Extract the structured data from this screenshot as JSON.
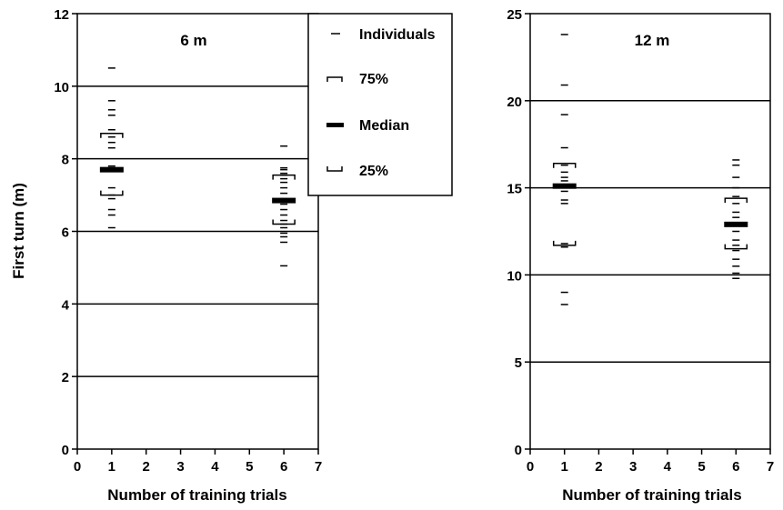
{
  "figure": {
    "ylabel": "First turn (m)",
    "legend": {
      "individuals": "Individuals",
      "q75": "75%",
      "median": "Median",
      "q25": "25%"
    }
  },
  "chart_data": [
    {
      "type": "scatter",
      "title": "6 m",
      "xlabel": "Number of training trials",
      "ylabel": "First turn (m)",
      "xlim": [
        0,
        7
      ],
      "ylim": [
        0,
        12
      ],
      "xticks": [
        "0",
        "1",
        "2",
        "3",
        "4",
        "5",
        "6",
        "7"
      ],
      "yticks": [
        "0",
        "2",
        "4",
        "6",
        "8",
        "10",
        "12"
      ],
      "gridlines_y": [
        2,
        4,
        6,
        8,
        10
      ],
      "groups": [
        {
          "x": 1,
          "individuals": [
            10.5,
            9.6,
            9.35,
            9.2,
            8.8,
            8.6,
            8.45,
            8.3,
            7.8,
            7.75,
            7.7,
            7.2,
            7.0,
            6.9,
            6.6,
            6.45,
            6.1
          ],
          "q75": 8.7,
          "median": 7.7,
          "q25": 7.0
        },
        {
          "x": 6,
          "individuals": [
            8.35,
            7.75,
            7.7,
            7.6,
            7.55,
            7.45,
            7.35,
            7.2,
            7.05,
            6.9,
            6.85,
            6.75,
            6.6,
            6.45,
            6.3,
            6.2,
            6.1,
            5.95,
            5.85,
            5.7,
            5.05
          ],
          "q75": 7.55,
          "median": 6.85,
          "q25": 6.2
        }
      ]
    },
    {
      "type": "scatter",
      "title": "12 m",
      "xlabel": "Number of training trials",
      "ylabel": "",
      "xlim": [
        0,
        7
      ],
      "ylim": [
        0,
        25
      ],
      "xticks": [
        "0",
        "1",
        "2",
        "3",
        "4",
        "5",
        "6",
        "7"
      ],
      "yticks": [
        "0",
        "5",
        "10",
        "15",
        "20",
        "25"
      ],
      "gridlines_y": [
        5,
        10,
        15,
        20
      ],
      "groups": [
        {
          "x": 1,
          "individuals": [
            23.8,
            20.9,
            19.2,
            17.3,
            16.3,
            15.9,
            15.6,
            15.4,
            15.2,
            15.0,
            14.8,
            14.3,
            14.1,
            11.8,
            11.6,
            9.0,
            8.3
          ],
          "q75": 16.4,
          "median": 15.1,
          "q25": 11.7
        },
        {
          "x": 6,
          "individuals": [
            16.6,
            16.3,
            15.6,
            15.0,
            14.5,
            14.1,
            13.6,
            13.3,
            12.9,
            12.5,
            12.0,
            11.7,
            11.4,
            10.9,
            10.5,
            10.1,
            9.8
          ],
          "q75": 14.4,
          "median": 12.9,
          "q25": 11.5
        }
      ]
    }
  ]
}
